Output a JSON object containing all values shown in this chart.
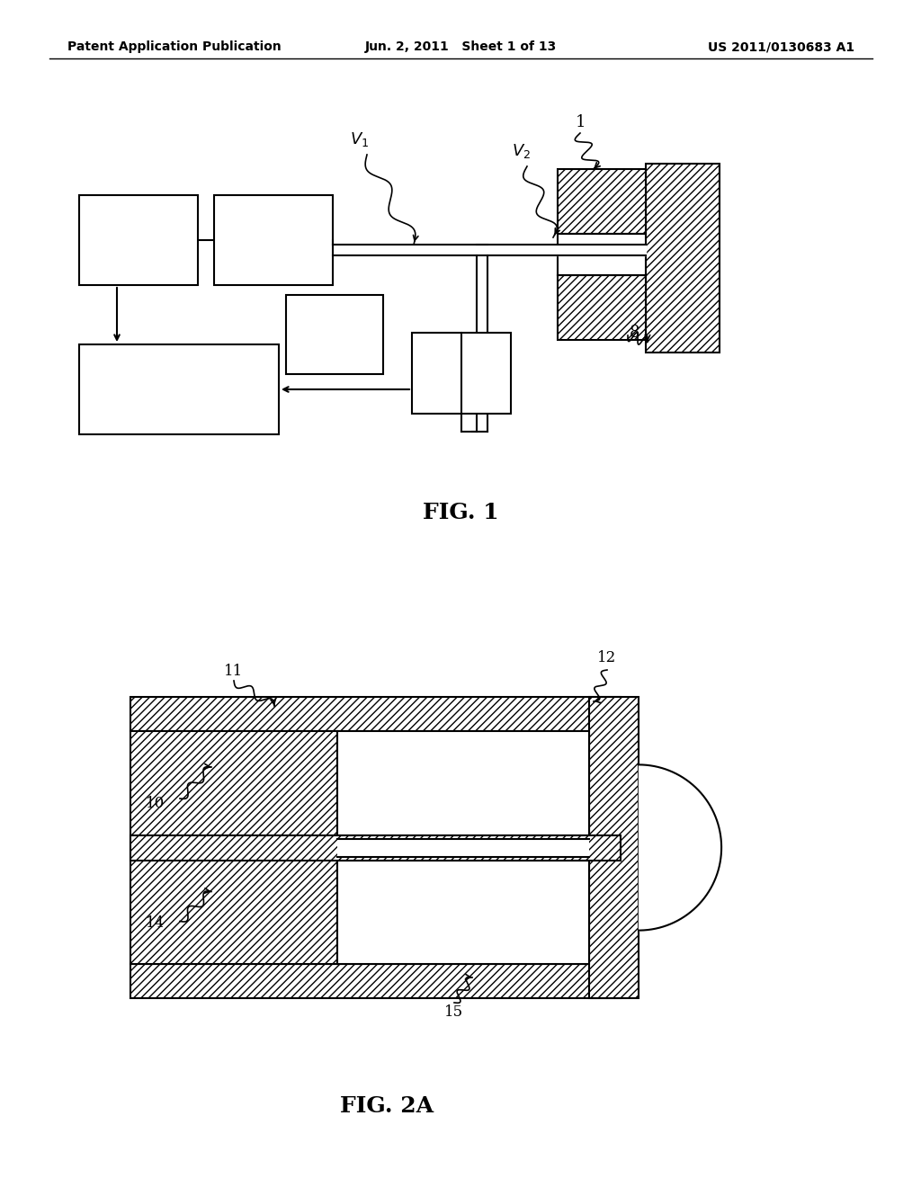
{
  "bg_color": "#ffffff",
  "header_left": "Patent Application Publication",
  "header_center": "Jun. 2, 2011   Sheet 1 of 13",
  "header_right": "US 2011/0130683 A1",
  "fig1_label": "FIG. 1",
  "fig2a_label": "FIG. 2A"
}
